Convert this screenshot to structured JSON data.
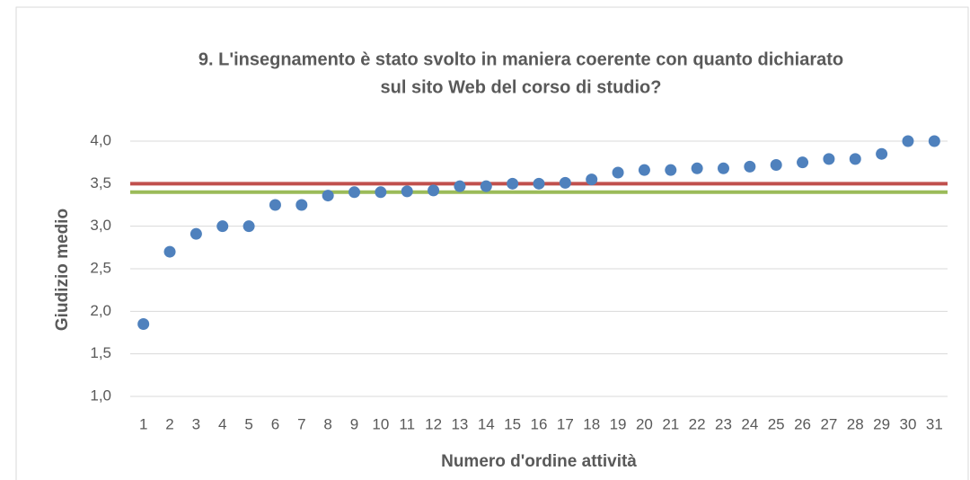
{
  "chart_data": {
    "type": "scatter",
    "title": [
      "9. L'insegnamento è stato svolto in maniera coerente con quanto dichiarato",
      "sul sito Web del corso di studio?"
    ],
    "x_label": "Numero d'ordine attività",
    "y_label": "Giudizio medio",
    "categories": [
      "1",
      "2",
      "3",
      "4",
      "5",
      "6",
      "7",
      "8",
      "9",
      "10",
      "11",
      "12",
      "13",
      "14",
      "15",
      "16",
      "17",
      "18",
      "19",
      "20",
      "21",
      "22",
      "23",
      "24",
      "25",
      "26",
      "27",
      "28",
      "29",
      "30",
      "31"
    ],
    "values": [
      1.85,
      2.7,
      2.91,
      3.0,
      3.0,
      3.25,
      3.25,
      3.36,
      3.4,
      3.4,
      3.41,
      3.42,
      3.47,
      3.47,
      3.5,
      3.5,
      3.51,
      3.55,
      3.63,
      3.66,
      3.66,
      3.68,
      3.68,
      3.7,
      3.72,
      3.75,
      3.79,
      3.79,
      3.85,
      4.0,
      4.0
    ],
    "color": "#4f81bd",
    "reference_lines": [
      {
        "value": 3.5,
        "color": "#c0504d"
      },
      {
        "value": 3.4,
        "color": "#9bbb59"
      }
    ],
    "ylim": [
      1.0,
      4.0
    ],
    "yticks": [
      {
        "value": 1.0,
        "label": "1,0"
      },
      {
        "value": 1.5,
        "label": "1,5"
      },
      {
        "value": 2.0,
        "label": "2,0"
      },
      {
        "value": 2.5,
        "label": "2,5"
      },
      {
        "value": 3.0,
        "label": "3,0"
      },
      {
        "value": 3.5,
        "label": "3,5"
      },
      {
        "value": 4.0,
        "label": "4,0"
      }
    ],
    "grid": true
  }
}
